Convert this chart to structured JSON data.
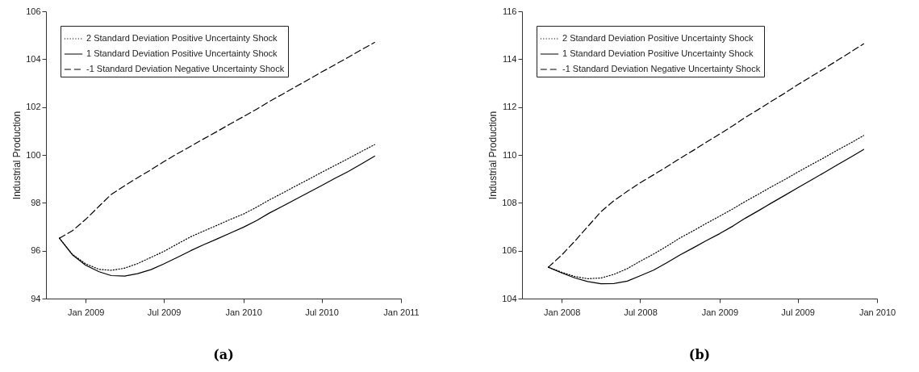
{
  "chart_data": [
    {
      "type": "line",
      "title": "(a)",
      "ylabel": "Industrial Production",
      "x": [
        "2008-11",
        "2008-12",
        "2009-01",
        "2009-02",
        "2009-03",
        "2009-04",
        "2009-05",
        "2009-06",
        "2009-07",
        "2009-08",
        "2009-09",
        "2009-10",
        "2009-11",
        "2009-12",
        "2010-01",
        "2010-02",
        "2010-03",
        "2010-04",
        "2010-05",
        "2010-06",
        "2010-07",
        "2010-08",
        "2010-09",
        "2010-10",
        "2010-11"
      ],
      "series": [
        {
          "name": "2 Standard Deviation Positive Uncertainty Shock",
          "color": "#000000",
          "line_style": "dotted",
          "values": [
            96.52,
            95.85,
            95.45,
            95.22,
            95.18,
            95.27,
            95.46,
            95.72,
            95.97,
            96.28,
            96.58,
            96.82,
            97.06,
            97.3,
            97.53,
            97.82,
            98.11,
            98.4,
            98.69,
            98.98,
            99.27,
            99.56,
            99.85,
            100.14,
            100.43
          ]
        },
        {
          "name": "1 Standard Deviation Positive Uncertainty Shock",
          "color": "#000000",
          "line_style": "solid",
          "values": [
            96.52,
            95.83,
            95.39,
            95.12,
            94.96,
            94.94,
            95.04,
            95.21,
            95.45,
            95.72,
            96.0,
            96.25,
            96.49,
            96.73,
            96.98,
            97.26,
            97.56,
            97.85,
            98.14,
            98.43,
            98.72,
            99.02,
            99.31,
            99.62,
            99.95
          ]
        },
        {
          "name": "-1 Standard Deviation Negative Uncertainty Shock",
          "color": "#000000",
          "line_style": "dashed",
          "values": [
            96.52,
            96.83,
            97.31,
            97.86,
            98.35,
            98.71,
            99.05,
            99.38,
            99.72,
            100.05,
            100.36,
            100.67,
            100.98,
            101.29,
            101.6,
            101.91,
            102.22,
            102.53,
            102.84,
            103.15,
            103.46,
            103.77,
            104.08,
            104.39,
            104.7
          ]
        }
      ],
      "xlim": [
        "2008-10",
        "2011-01"
      ],
      "xticks": [
        {
          "value": "2009-01",
          "label": "Jan 2009"
        },
        {
          "value": "2009-07",
          "label": "Jul 2009"
        },
        {
          "value": "2010-01",
          "label": "Jan 2010"
        },
        {
          "value": "2010-07",
          "label": "Jul 2010"
        },
        {
          "value": "2011-01",
          "label": "Jan 2011"
        }
      ],
      "ylim": [
        94,
        106
      ],
      "yticks": [
        94,
        96,
        98,
        100,
        102,
        104,
        106
      ],
      "legend": "top left"
    },
    {
      "type": "line",
      "title": "(b)",
      "ylabel": "Industrial Production",
      "x": [
        "2007-12",
        "2008-01",
        "2008-02",
        "2008-03",
        "2008-04",
        "2008-05",
        "2008-06",
        "2008-07",
        "2008-08",
        "2008-09",
        "2008-10",
        "2008-11",
        "2008-12",
        "2009-01",
        "2009-02",
        "2009-03",
        "2009-04",
        "2009-05",
        "2009-06",
        "2009-07",
        "2009-08",
        "2009-09",
        "2009-10",
        "2009-11",
        "2009-12"
      ],
      "series": [
        {
          "name": "2 Standard Deviation Positive Uncertainty Shock",
          "color": "#000000",
          "line_style": "dotted",
          "values": [
            105.31,
            105.1,
            104.92,
            104.83,
            104.86,
            105.01,
            105.25,
            105.56,
            105.86,
            106.19,
            106.53,
            106.83,
            107.14,
            107.44,
            107.75,
            108.05,
            108.36,
            108.67,
            108.97,
            109.28,
            109.59,
            109.89,
            110.2,
            110.5,
            110.81
          ]
        },
        {
          "name": "1 Standard Deviation Positive Uncertainty Shock",
          "color": "#000000",
          "line_style": "solid",
          "values": [
            105.31,
            105.07,
            104.86,
            104.71,
            104.62,
            104.63,
            104.73,
            104.95,
            105.19,
            105.5,
            105.82,
            106.12,
            106.42,
            106.71,
            107.03,
            107.35,
            107.67,
            107.99,
            108.31,
            108.63,
            108.95,
            109.27,
            109.59,
            109.91,
            110.23
          ]
        },
        {
          "name": "-1 Standard Deviation Negative Uncertainty Shock",
          "color": "#000000",
          "line_style": "dashed",
          "values": [
            105.31,
            105.82,
            106.41,
            107.0,
            107.63,
            108.09,
            108.48,
            108.84,
            109.17,
            109.51,
            109.85,
            110.19,
            110.53,
            110.87,
            111.22,
            111.56,
            111.9,
            112.24,
            112.58,
            112.93,
            113.27,
            113.61,
            113.95,
            114.3,
            114.64
          ]
        }
      ],
      "xlim": [
        "2007-10",
        "2010-01"
      ],
      "xticks": [
        {
          "value": "2008-01",
          "label": "Jan 2008"
        },
        {
          "value": "2008-07",
          "label": "Jul 2008"
        },
        {
          "value": "2009-01",
          "label": "Jan 2009"
        },
        {
          "value": "2009-07",
          "label": "Jul 2009"
        },
        {
          "value": "2010-01",
          "label": "Jan 2010"
        }
      ],
      "ylim": [
        104,
        116
      ],
      "yticks": [
        104,
        106,
        108,
        110,
        112,
        114,
        116
      ],
      "legend": "top left"
    }
  ]
}
